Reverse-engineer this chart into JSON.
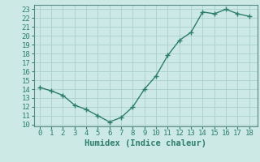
{
  "x": [
    0,
    1,
    2,
    3,
    4,
    5,
    6,
    7,
    8,
    9,
    10,
    11,
    12,
    13,
    14,
    15,
    16,
    17,
    18
  ],
  "y": [
    14.2,
    13.8,
    13.3,
    12.2,
    11.7,
    11.0,
    10.3,
    10.8,
    12.0,
    14.0,
    15.5,
    17.8,
    19.5,
    20.4,
    22.7,
    22.5,
    23.0,
    22.5,
    22.2
  ],
  "line_color": "#2d7d6b",
  "marker": "+",
  "bg_color": "#cce9e6",
  "grid_color": "#aacfcc",
  "spine_color": "#5a8a84",
  "xlabel": "Humidex (Indice chaleur)",
  "xlabel_fontsize": 7.5,
  "tick_fontsize": 6.5,
  "ylim": [
    9.8,
    23.5
  ],
  "yticks": [
    10,
    11,
    12,
    13,
    14,
    15,
    16,
    17,
    18,
    19,
    20,
    21,
    22,
    23
  ],
  "xticks": [
    0,
    1,
    2,
    3,
    4,
    5,
    6,
    7,
    8,
    9,
    10,
    11,
    12,
    13,
    14,
    15,
    16,
    17,
    18
  ],
  "xlim": [
    -0.5,
    18.7
  ]
}
